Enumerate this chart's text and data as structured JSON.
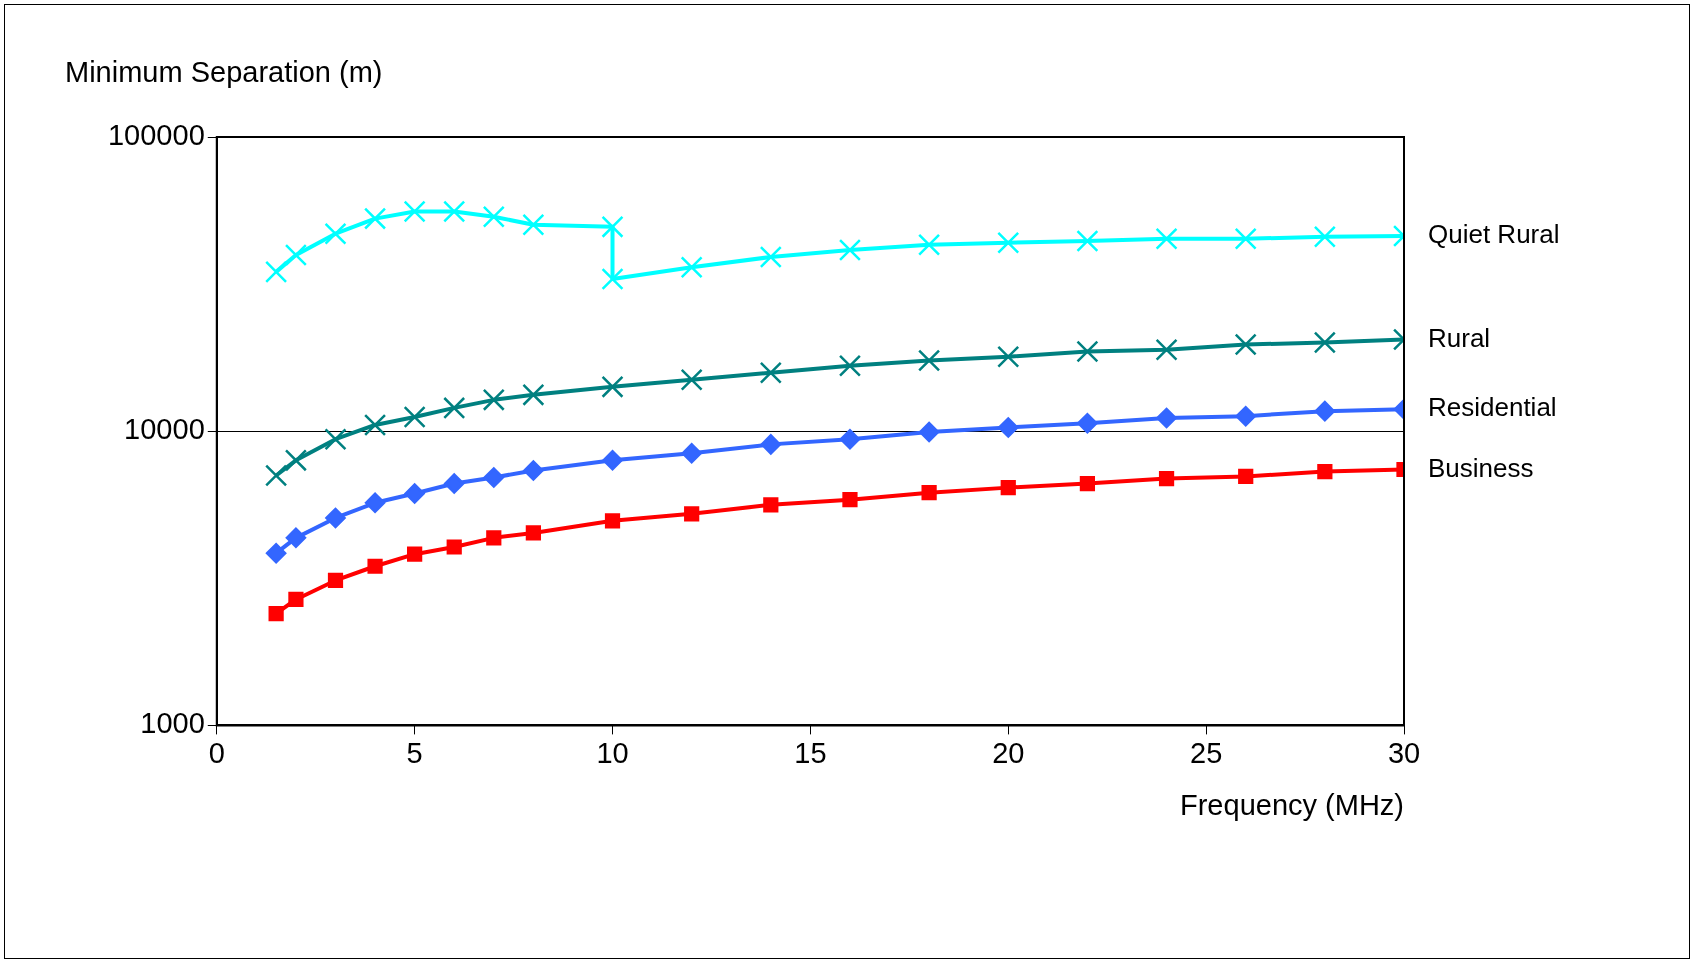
{
  "chart_data": {
    "type": "line",
    "xlabel": "Frequency (MHz)",
    "ylabel": "Minimum Separation (m)",
    "log": "y",
    "grid": "y",
    "legend": false,
    "line_style": "solid",
    "xlim": [
      0,
      30
    ],
    "xticks": [
      0,
      5,
      10,
      15,
      20,
      25,
      30
    ],
    "ylim": [
      1000,
      100000
    ],
    "yticks": [
      1000,
      10000,
      100000
    ],
    "x": [
      1.5,
      2,
      3,
      4,
      5,
      6,
      7,
      8,
      10,
      12,
      14,
      16,
      18,
      20,
      22,
      24,
      26,
      28,
      30
    ],
    "series": [
      {
        "name": "Quiet Rural",
        "color": "#00ffff",
        "marker": "cross",
        "x": [
          1.5,
          2,
          3,
          4,
          5,
          6,
          7,
          8,
          10,
          10,
          12,
          14,
          16,
          18,
          20,
          22,
          24,
          26,
          28,
          30
        ],
        "values": [
          34800,
          39700,
          46900,
          52800,
          55800,
          55800,
          53600,
          50300,
          49500,
          32900,
          36100,
          39100,
          41300,
          43000,
          43700,
          44300,
          45100,
          45100,
          45800,
          46100
        ]
      },
      {
        "name": "Rural",
        "color": "#008080",
        "marker": "cross",
        "values": [
          7070,
          7960,
          9390,
          10500,
          11170,
          12000,
          12780,
          13290,
          14150,
          14950,
          15800,
          16700,
          17380,
          17920,
          18650,
          18930,
          19710,
          20020,
          20500
        ]
      },
      {
        "name": "Residential",
        "color": "#3366ff",
        "marker": "diamond",
        "values": [
          3850,
          4340,
          5070,
          5710,
          6140,
          6640,
          6960,
          7350,
          7960,
          8410,
          9020,
          9390,
          9930,
          10300,
          10650,
          11090,
          11250,
          11700,
          11880
        ]
      },
      {
        "name": "Business",
        "color": "#ff0000",
        "marker": "square",
        "values": [
          2400,
          2680,
          3110,
          3475,
          3820,
          4040,
          4340,
          4510,
          4960,
          5240,
          5620,
          5850,
          6180,
          6430,
          6640,
          6900,
          7020,
          7290,
          7410
        ]
      }
    ]
  }
}
